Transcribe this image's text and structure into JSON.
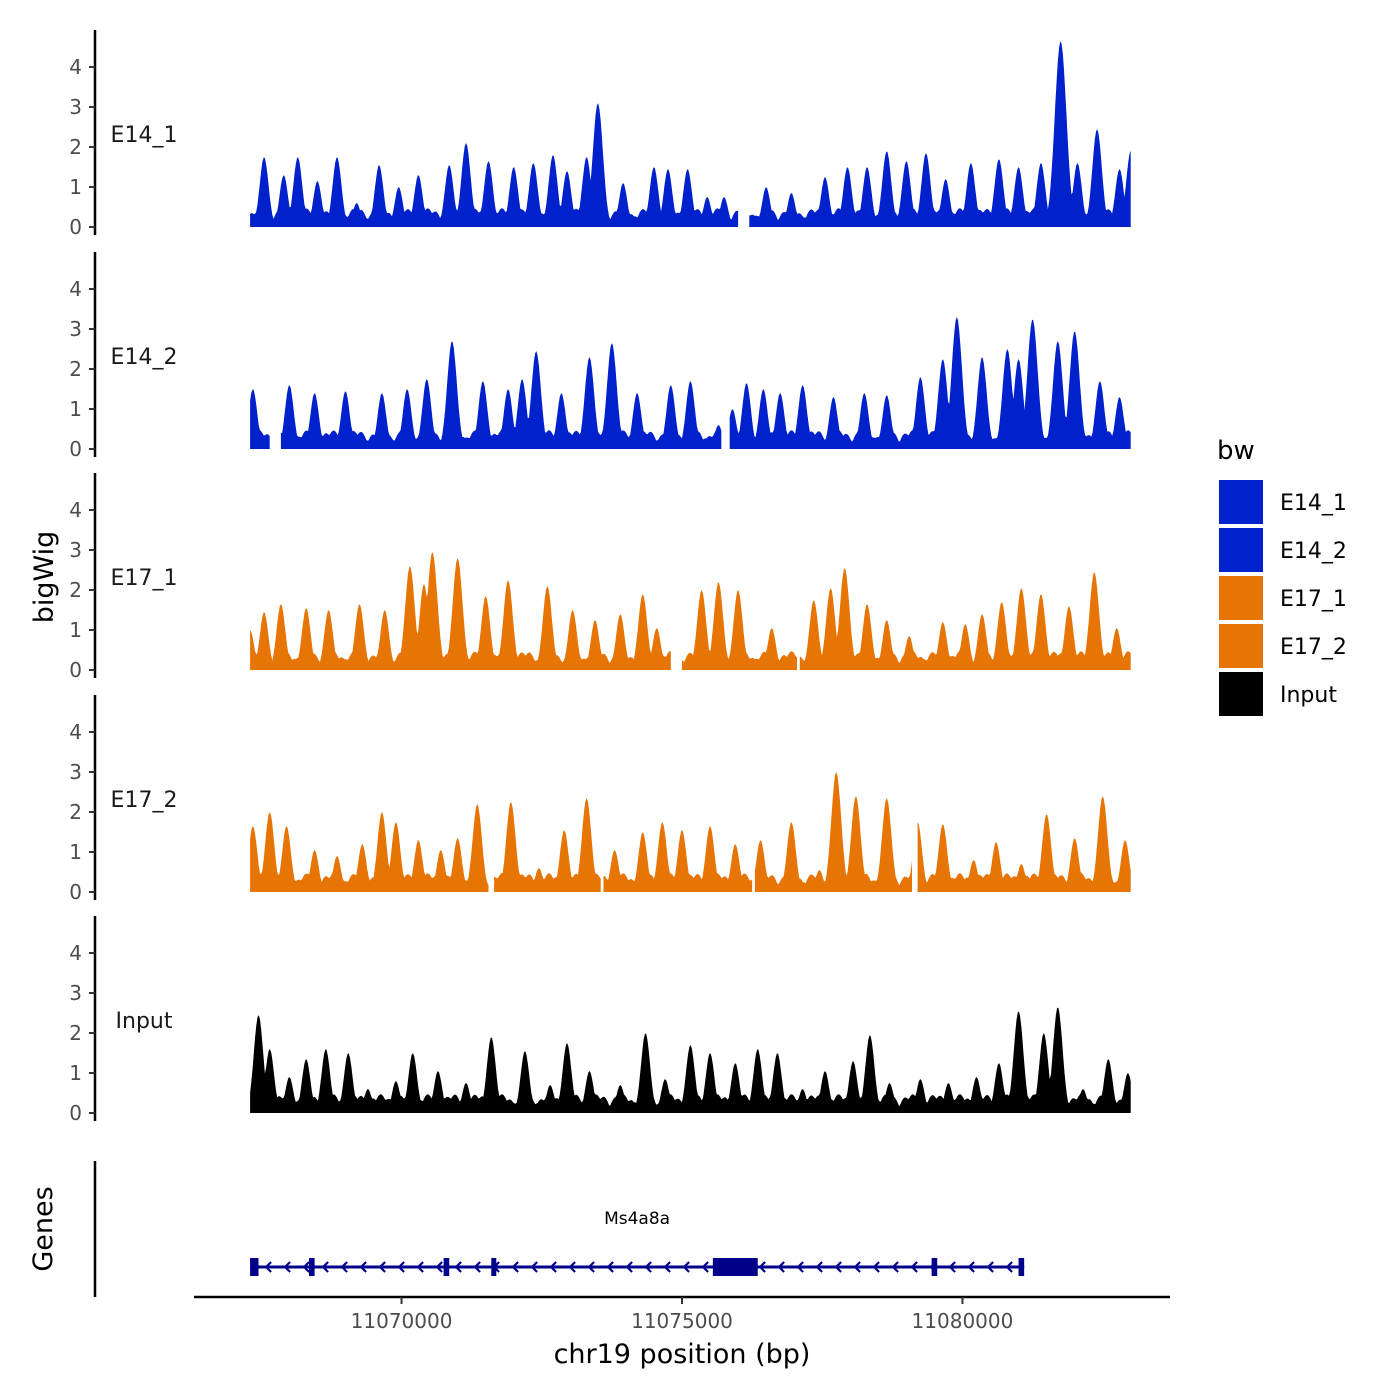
{
  "chart_data": {
    "type": "area",
    "ylabel": "bigWig",
    "xlabel": "chr19 position (bp)",
    "genes_label": "Genes",
    "legend_title": "bw",
    "ylim": [
      0,
      4.85
    ],
    "y_ticks": [
      "0",
      "1",
      "2",
      "3",
      "4"
    ],
    "x_range": [
      11066300,
      11083700
    ],
    "x_ticks": [
      "11070000",
      "11075000",
      "11080000"
    ],
    "colors": {
      "E14": "#0021CC",
      "E17": "#E67505",
      "Input": "#000000",
      "gene": "#00008B"
    },
    "legend": [
      {
        "label": "E14_1",
        "color": "#0021CC"
      },
      {
        "label": "E14_2",
        "color": "#0021CC"
      },
      {
        "label": "E17_1",
        "color": "#E67505"
      },
      {
        "label": "E17_2",
        "color": "#E67505"
      },
      {
        "label": "Input",
        "color": "#000000"
      }
    ],
    "series": [
      {
        "name": "E14_1",
        "color": "#0021CC",
        "x_start": 11067300,
        "x_end": 11083000,
        "gaps": [
          [
            11076000,
            11076200
          ]
        ],
        "peaks": [
          [
            11067550,
            1.75
          ],
          [
            11067900,
            1.3
          ],
          [
            11068150,
            1.75
          ],
          [
            11068500,
            1.15
          ],
          [
            11068850,
            1.75
          ],
          [
            11069200,
            0.6
          ],
          [
            11069600,
            1.55
          ],
          [
            11069950,
            1.0
          ],
          [
            11070300,
            1.3
          ],
          [
            11070850,
            1.55
          ],
          [
            11071150,
            2.1
          ],
          [
            11071550,
            1.65
          ],
          [
            11072000,
            1.5
          ],
          [
            11072350,
            1.6
          ],
          [
            11072700,
            1.8
          ],
          [
            11072950,
            1.4
          ],
          [
            11073300,
            1.75
          ],
          [
            11073500,
            3.1
          ],
          [
            11073950,
            1.1
          ],
          [
            11074500,
            1.5
          ],
          [
            11074750,
            1.45
          ],
          [
            11075100,
            1.45
          ],
          [
            11075450,
            0.75
          ],
          [
            11075750,
            0.75
          ],
          [
            11076500,
            1.0
          ],
          [
            11076950,
            0.85
          ],
          [
            11077550,
            1.25
          ],
          [
            11077950,
            1.5
          ],
          [
            11078300,
            1.5
          ],
          [
            11078650,
            1.9
          ],
          [
            11079000,
            1.65
          ],
          [
            11079350,
            1.85
          ],
          [
            11079700,
            1.2
          ],
          [
            11080150,
            1.6
          ],
          [
            11080650,
            1.7
          ],
          [
            11081000,
            1.5
          ],
          [
            11081400,
            1.6
          ],
          [
            11081750,
            4.65
          ],
          [
            11082050,
            1.6
          ],
          [
            11082400,
            2.45
          ],
          [
            11082800,
            1.45
          ],
          [
            11083000,
            1.9
          ]
        ]
      },
      {
        "name": "E14_2",
        "color": "#0021CC",
        "x_start": 11067300,
        "x_end": 11083000,
        "gaps": [
          [
            11067650,
            11067850
          ],
          [
            11075700,
            11075850
          ]
        ],
        "peaks": [
          [
            11067350,
            1.5
          ],
          [
            11068000,
            1.6
          ],
          [
            11068450,
            1.4
          ],
          [
            11069000,
            1.45
          ],
          [
            11069650,
            1.4
          ],
          [
            11070100,
            1.5
          ],
          [
            11070450,
            1.75
          ],
          [
            11070900,
            2.7
          ],
          [
            11071450,
            1.7
          ],
          [
            11071900,
            1.5
          ],
          [
            11072150,
            1.75
          ],
          [
            11072400,
            2.45
          ],
          [
            11072850,
            1.4
          ],
          [
            11073350,
            2.3
          ],
          [
            11073750,
            2.65
          ],
          [
            11074200,
            1.4
          ],
          [
            11074800,
            1.6
          ],
          [
            11075150,
            1.7
          ],
          [
            11075650,
            0.6
          ],
          [
            11075900,
            1.0
          ],
          [
            11076150,
            1.65
          ],
          [
            11076450,
            1.5
          ],
          [
            11076750,
            1.4
          ],
          [
            11077150,
            1.6
          ],
          [
            11077700,
            1.3
          ],
          [
            11078250,
            1.4
          ],
          [
            11078650,
            1.35
          ],
          [
            11079250,
            1.8
          ],
          [
            11079650,
            2.25
          ],
          [
            11079900,
            3.3
          ],
          [
            11080350,
            2.3
          ],
          [
            11080800,
            2.5
          ],
          [
            11081000,
            2.25
          ],
          [
            11081250,
            3.25
          ],
          [
            11081700,
            2.7
          ],
          [
            11082000,
            2.95
          ],
          [
            11082450,
            1.7
          ],
          [
            11082800,
            1.3
          ],
          [
            11083000,
            0.4
          ]
        ]
      },
      {
        "name": "E17_1",
        "color": "#E67505",
        "x_start": 11067300,
        "x_end": 11083000,
        "gaps": [
          [
            11074800,
            11075000
          ],
          [
            11077050,
            11077100
          ]
        ],
        "peaks": [
          [
            11067300,
            1.0
          ],
          [
            11067550,
            1.45
          ],
          [
            11067850,
            1.65
          ],
          [
            11068300,
            1.55
          ],
          [
            11068700,
            1.5
          ],
          [
            11069250,
            1.65
          ],
          [
            11069700,
            1.5
          ],
          [
            11070150,
            2.6
          ],
          [
            11070400,
            2.15
          ],
          [
            11070550,
            2.95
          ],
          [
            11071000,
            2.8
          ],
          [
            11071500,
            1.85
          ],
          [
            11071900,
            2.25
          ],
          [
            11072600,
            2.1
          ],
          [
            11073050,
            1.5
          ],
          [
            11073450,
            1.25
          ],
          [
            11073900,
            1.4
          ],
          [
            11074300,
            1.9
          ],
          [
            11074550,
            1.05
          ],
          [
            11075350,
            2.0
          ],
          [
            11075650,
            2.2
          ],
          [
            11076000,
            2.0
          ],
          [
            11076600,
            1.05
          ],
          [
            11077350,
            1.75
          ],
          [
            11077650,
            2.05
          ],
          [
            11077900,
            2.55
          ],
          [
            11078300,
            1.65
          ],
          [
            11078650,
            1.25
          ],
          [
            11079050,
            0.85
          ],
          [
            11079650,
            1.2
          ],
          [
            11080050,
            1.15
          ],
          [
            11080350,
            1.4
          ],
          [
            11080700,
            1.7
          ],
          [
            11081050,
            2.05
          ],
          [
            11081400,
            1.9
          ],
          [
            11081900,
            1.6
          ],
          [
            11082350,
            2.45
          ],
          [
            11082750,
            1.05
          ]
        ]
      },
      {
        "name": "E17_2",
        "color": "#E67505",
        "x_start": 11067300,
        "x_end": 11083000,
        "gaps": [
          [
            11071550,
            11071650
          ],
          [
            11073550,
            11073600
          ],
          [
            11076250,
            11076300
          ],
          [
            11079100,
            11079200
          ]
        ],
        "peaks": [
          [
            11067350,
            1.65
          ],
          [
            11067650,
            2.0
          ],
          [
            11067950,
            1.65
          ],
          [
            11068450,
            1.05
          ],
          [
            11068850,
            0.9
          ],
          [
            11069300,
            1.2
          ],
          [
            11069650,
            2.0
          ],
          [
            11069900,
            1.75
          ],
          [
            11070300,
            1.3
          ],
          [
            11070700,
            1.05
          ],
          [
            11071000,
            1.35
          ],
          [
            11071350,
            2.2
          ],
          [
            11071950,
            2.25
          ],
          [
            11072450,
            0.6
          ],
          [
            11072900,
            1.55
          ],
          [
            11073300,
            2.35
          ],
          [
            11073800,
            1.05
          ],
          [
            11074300,
            1.5
          ],
          [
            11074650,
            1.75
          ],
          [
            11075000,
            1.55
          ],
          [
            11075500,
            1.65
          ],
          [
            11075950,
            1.2
          ],
          [
            11076400,
            1.3
          ],
          [
            11076950,
            1.75
          ],
          [
            11077450,
            0.55
          ],
          [
            11077750,
            3.0
          ],
          [
            11078100,
            2.4
          ],
          [
            11078650,
            2.35
          ],
          [
            11079200,
            1.75
          ],
          [
            11079650,
            1.7
          ],
          [
            11080200,
            0.8
          ],
          [
            11080600,
            1.25
          ],
          [
            11081050,
            0.7
          ],
          [
            11081500,
            1.95
          ],
          [
            11082000,
            1.35
          ],
          [
            11082500,
            2.4
          ],
          [
            11082900,
            1.3
          ]
        ]
      },
      {
        "name": "Input",
        "color": "#000000",
        "x_start": 11067300,
        "x_end": 11083000,
        "gaps": [],
        "peaks": [
          [
            11067450,
            2.45
          ],
          [
            11067650,
            1.6
          ],
          [
            11068000,
            0.9
          ],
          [
            11068300,
            1.35
          ],
          [
            11068650,
            1.6
          ],
          [
            11069050,
            1.5
          ],
          [
            11069400,
            0.6
          ],
          [
            11069900,
            0.8
          ],
          [
            11070200,
            1.5
          ],
          [
            11070650,
            1.05
          ],
          [
            11071150,
            0.75
          ],
          [
            11071600,
            1.9
          ],
          [
            11072200,
            1.55
          ],
          [
            11072650,
            0.7
          ],
          [
            11072950,
            1.75
          ],
          [
            11073350,
            1.05
          ],
          [
            11073900,
            0.7
          ],
          [
            11074350,
            2.0
          ],
          [
            11074700,
            0.85
          ],
          [
            11075150,
            1.7
          ],
          [
            11075500,
            1.5
          ],
          [
            11075950,
            1.25
          ],
          [
            11076350,
            1.6
          ],
          [
            11076700,
            1.5
          ],
          [
            11077150,
            0.6
          ],
          [
            11077550,
            1.05
          ],
          [
            11078050,
            1.3
          ],
          [
            11078350,
            1.95
          ],
          [
            11078700,
            0.75
          ],
          [
            11079250,
            0.85
          ],
          [
            11079750,
            0.75
          ],
          [
            11080250,
            0.9
          ],
          [
            11080650,
            1.25
          ],
          [
            11081000,
            2.55
          ],
          [
            11081450,
            2.0
          ],
          [
            11081700,
            2.65
          ],
          [
            11082150,
            0.6
          ],
          [
            11082600,
            1.35
          ],
          [
            11082950,
            1.0
          ]
        ]
      }
    ],
    "gene": {
      "name": "Ms4a8a",
      "strand": "-",
      "start": 11067300,
      "end": 11081100,
      "exons": [
        [
          11067300,
          11067450
        ],
        [
          11068350,
          11068450
        ],
        [
          11070750,
          11070850
        ],
        [
          11071600,
          11071650
        ],
        [
          11075550,
          11076350
        ],
        [
          11079450,
          11079550
        ],
        [
          11081000,
          11081100
        ]
      ]
    }
  }
}
